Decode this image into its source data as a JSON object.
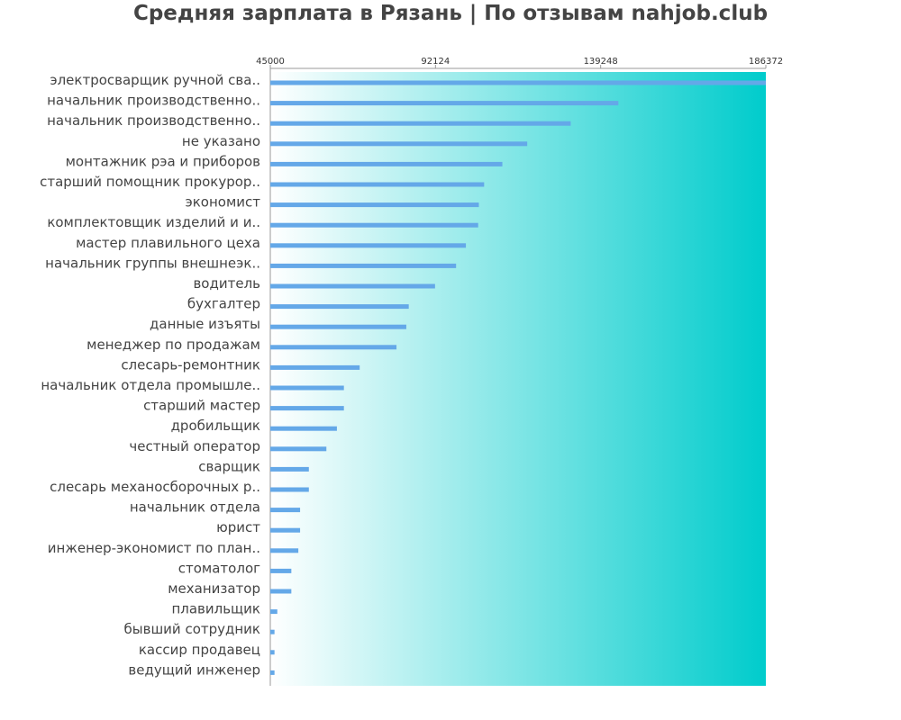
{
  "chart_data": {
    "type": "bar",
    "orientation": "horizontal",
    "title": "Средняя зарплата в Рязань | По отзывам nahjob.club",
    "xlim": [
      45000,
      186372
    ],
    "ticks": [
      "45000",
      "92124",
      "139248",
      "186372"
    ],
    "categories": [
      "электросварщик ручной сва..",
      "начальник производственно..",
      "начальник производственно..",
      "не указано",
      "монтажник рэа и приборов",
      "старший помощник прокурор..",
      "экономист",
      "комплектовщик изделий и и..",
      "мастер плавильного цеха",
      "начальник группы внешнеэк..",
      "водитель",
      "бухгалтер",
      "данные изъяты",
      "менеджер по продажам",
      "слесарь-ремонтник",
      "начальник отдела промышле..",
      "старший мастер",
      "дробильщик",
      "честный оператор",
      "сварщик",
      "слесарь механосборочных р..",
      "начальник отдела",
      "юрист",
      "инженер-экономист по план..",
      "стоматолог",
      "механизатор",
      "плавильщик",
      "бывший сотрудник",
      "кассир продавец",
      "ведущий инженер"
    ],
    "values": [
      186372,
      144300,
      130700,
      118300,
      111200,
      106000,
      104500,
      104300,
      100800,
      98000,
      92000,
      84500,
      83800,
      81000,
      70500,
      66000,
      66000,
      64000,
      61000,
      56000,
      56000,
      53500,
      53500,
      53000,
      51000,
      51000,
      47000,
      46200,
      46200,
      46200
    ],
    "colors": {
      "bar": "#64a8e8",
      "gradient_start": "#ffffff",
      "gradient_end": "#00cccc",
      "axis": "#999999"
    }
  }
}
